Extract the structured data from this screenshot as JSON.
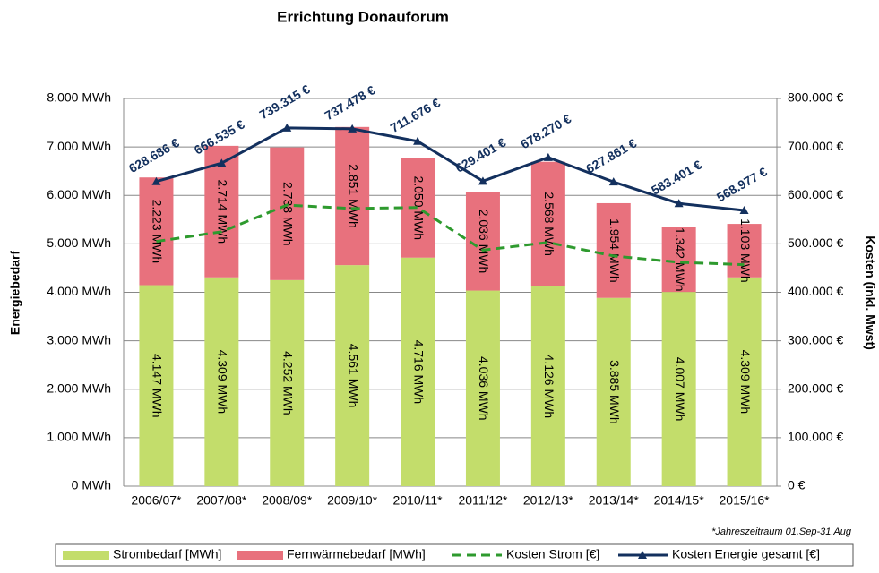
{
  "chart_data": {
    "type": "bar",
    "stacked": true,
    "title": "Errichtung Donauforum",
    "y_label": "Energiebedarf",
    "y2_label": "Kosten (inkl. Mwst)",
    "annotation": "*Jahreszeitraum 01.Sep-31.Aug",
    "categories": [
      "2006/07*",
      "2007/08*",
      "2008/09*",
      "2009/10*",
      "2010/11*",
      "2011/12*",
      "2012/13*",
      "2013/14*",
      "2014/15*",
      "2015/16*"
    ],
    "ylim": [
      0,
      8000
    ],
    "yticks": [
      {
        "value": 0,
        "label": "0 MWh"
      },
      {
        "value": 1000,
        "label": "1.000 MWh"
      },
      {
        "value": 2000,
        "label": "2.000 MWh"
      },
      {
        "value": 3000,
        "label": "3.000 MWh"
      },
      {
        "value": 4000,
        "label": "4.000 MWh"
      },
      {
        "value": 5000,
        "label": "5.000 MWh"
      },
      {
        "value": 6000,
        "label": "6.000 MWh"
      },
      {
        "value": 7000,
        "label": "7.000 MWh"
      },
      {
        "value": 8000,
        "label": "8.000 MWh"
      }
    ],
    "y2lim": [
      0,
      800000
    ],
    "y2ticks": [
      {
        "value": 0,
        "label": "0 €"
      },
      {
        "value": 100000,
        "label": "100.000 €"
      },
      {
        "value": 200000,
        "label": "200.000 €"
      },
      {
        "value": 300000,
        "label": "300.000 €"
      },
      {
        "value": 400000,
        "label": "400.000 €"
      },
      {
        "value": 500000,
        "label": "500.000 €"
      },
      {
        "value": 600000,
        "label": "600.000 €"
      },
      {
        "value": 700000,
        "label": "700.000 €"
      },
      {
        "value": 800000,
        "label": "800.000 €"
      }
    ],
    "grid": true,
    "series": [
      {
        "name": "Strombedarf [MWh]",
        "color": "#c3dd6b",
        "values": [
          4147,
          4309,
          4252,
          4561,
          4716,
          4036,
          4126,
          3885,
          4007,
          4309
        ],
        "value_labels": [
          "4.147 MWh",
          "4.309 MWh",
          "4.252 MWh",
          "4.561 MWh",
          "4.716 MWh",
          "4.036 MWh",
          "4.126 MWh",
          "3.885 MWh",
          "4.007 MWh",
          "4.309 MWh"
        ]
      },
      {
        "name": "Fernwärmebedarf [MWh]",
        "color": "#e8717d",
        "values": [
          2223,
          2714,
          2738,
          2851,
          2050,
          2036,
          2568,
          1954,
          1342,
          1103
        ],
        "value_labels": [
          "2.223 MWh",
          "2.714 MWh",
          "2.738 MWh",
          "2.851 MWh",
          "2.050 MWh",
          "2.036 MWh",
          "2.568 MWh",
          "1.954 MWh",
          "1.342 MWh",
          "1.103 MWh"
        ]
      },
      {
        "name": "Kosten Strom [€]",
        "type": "line",
        "axis": "y2",
        "dashed": true,
        "color": "#2e9a2e",
        "values": [
          505000,
          525000,
          580000,
          573000,
          575000,
          487000,
          503000,
          475000,
          462000,
          457000
        ]
      },
      {
        "name": "Kosten Energie gesamt [€]",
        "type": "line",
        "axis": "y2",
        "marker": "triangle",
        "color": "#13305e",
        "values": [
          628686,
          666535,
          739315,
          737478,
          711676,
          629401,
          678270,
          627861,
          583401,
          568977
        ],
        "value_labels": [
          "628.686 €",
          "666.535 €",
          "739.315 €",
          "737.478 €",
          "711.676 €",
          "629.401 €",
          "678.270 €",
          "627.861 €",
          "583.401 €",
          "568.977 €"
        ]
      }
    ]
  }
}
